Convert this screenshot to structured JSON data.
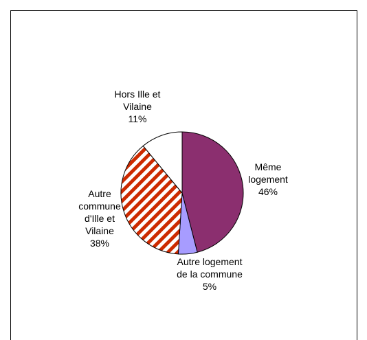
{
  "chart_data": {
    "type": "pie",
    "categories": [
      "Même logement",
      "Autre logement de la commune",
      "Autre commune d'Ille et Vilaine",
      "Hors Ille et Vilaine"
    ],
    "values": [
      46,
      5,
      38,
      11
    ],
    "value_labels": [
      "46%",
      "5%",
      "38%",
      "11%"
    ],
    "colors": [
      "#8b2f6f",
      "#a79cff",
      "#cc2a00",
      "#ffffff"
    ],
    "hatched": [
      false,
      false,
      true,
      false
    ]
  }
}
